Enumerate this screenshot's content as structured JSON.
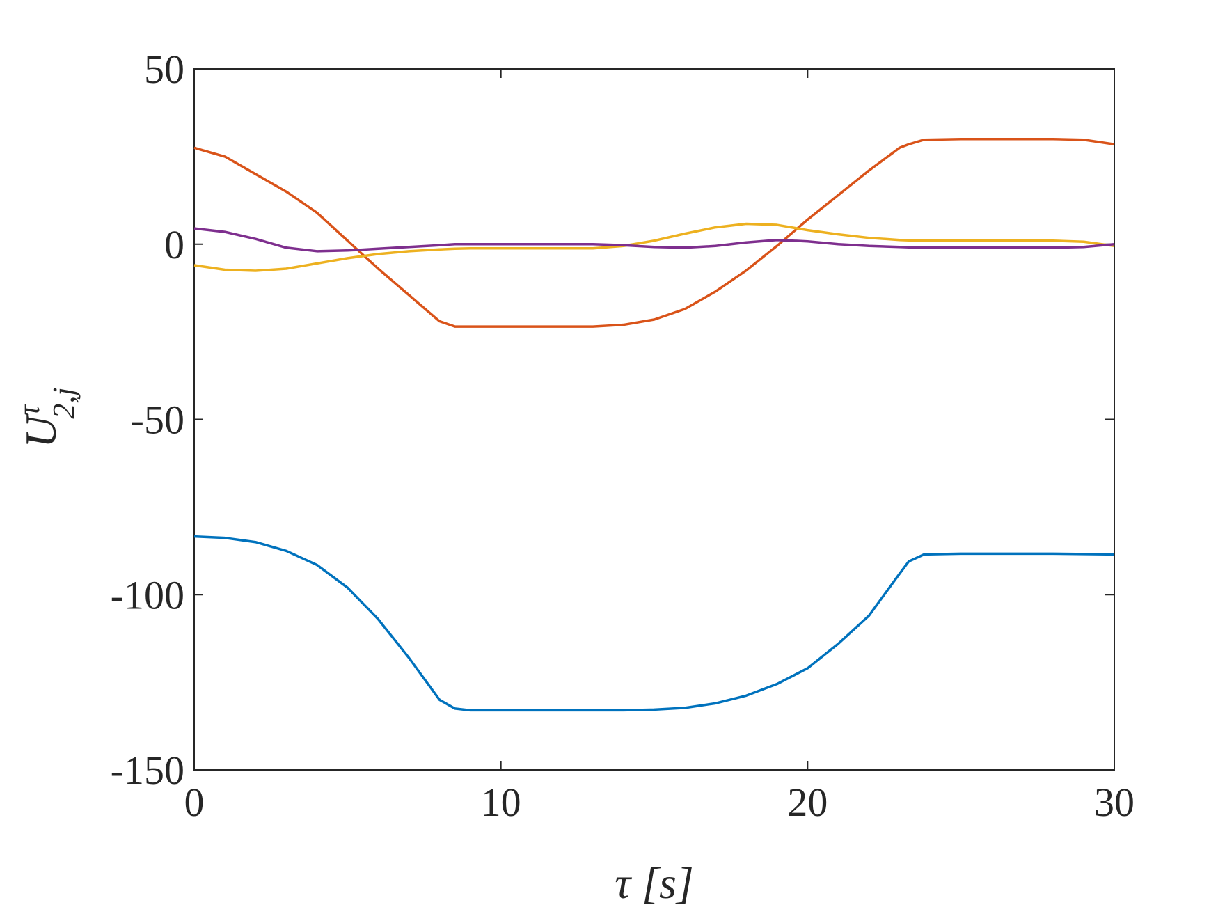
{
  "chart_data": {
    "type": "line",
    "xlabel": "τ  [s]",
    "ylabel": {
      "base": "U",
      "sup": "τ",
      "sub": "2,j"
    },
    "x": [
      0,
      1,
      2,
      3,
      4,
      5,
      6,
      7,
      8,
      8.5,
      9,
      10,
      11,
      12,
      13,
      14,
      15,
      16,
      17,
      18,
      19,
      20,
      21,
      22,
      23,
      23.3,
      23.8,
      25,
      26,
      27,
      28,
      29,
      30
    ],
    "series": [
      {
        "color": "#0072bd",
        "values": [
          -83.4,
          -83.8,
          -85,
          -87.5,
          -91.5,
          -98,
          -107,
          -118,
          -130,
          -132.5,
          -133,
          -133,
          -133,
          -133,
          -133,
          -133,
          -132.8,
          -132.3,
          -131,
          -128.8,
          -125.5,
          -121,
          -114,
          -106,
          -94,
          -90.5,
          -88.5,
          -88.3,
          -88.3,
          -88.3,
          -88.3,
          -88.4,
          -88.5
        ]
      },
      {
        "color": "#d95319",
        "values": [
          27.5,
          25,
          20,
          15,
          9,
          1,
          -7,
          -14.5,
          -22,
          -23.5,
          -23.5,
          -23.5,
          -23.5,
          -23.5,
          -23.5,
          -23,
          -21.5,
          -18.5,
          -13.5,
          -7.5,
          -0.5,
          7,
          14,
          21,
          27.5,
          28.5,
          29.8,
          30,
          30,
          30,
          30,
          29.8,
          28.5
        ]
      },
      {
        "color": "#edb120",
        "values": [
          -6,
          -7.3,
          -7.6,
          -7,
          -5.5,
          -4,
          -2.8,
          -2,
          -1.5,
          -1.3,
          -1.2,
          -1.2,
          -1.2,
          -1.2,
          -1.2,
          -0.5,
          1,
          3,
          4.8,
          5.8,
          5.5,
          4,
          2.8,
          1.8,
          1.2,
          1.1,
          1,
          1,
          1,
          1,
          1,
          0.7,
          -0.5
        ]
      },
      {
        "color": "#7e2f8e",
        "values": [
          4.5,
          3.5,
          1.5,
          -1,
          -2,
          -1.8,
          -1.3,
          -0.8,
          -0.3,
          0,
          0,
          0,
          0,
          0,
          0,
          -0.3,
          -0.8,
          -1,
          -0.5,
          0.5,
          1.2,
          0.8,
          0,
          -0.5,
          -0.8,
          -0.9,
          -1,
          -1,
          -1,
          -1,
          -1,
          -0.8,
          0
        ]
      }
    ],
    "xlim": [
      0,
      30
    ],
    "xticks": [
      0,
      10,
      20,
      30
    ],
    "ylim": [
      -150,
      50
    ],
    "yticks": [
      -150,
      -100,
      -50,
      0,
      50
    ]
  }
}
